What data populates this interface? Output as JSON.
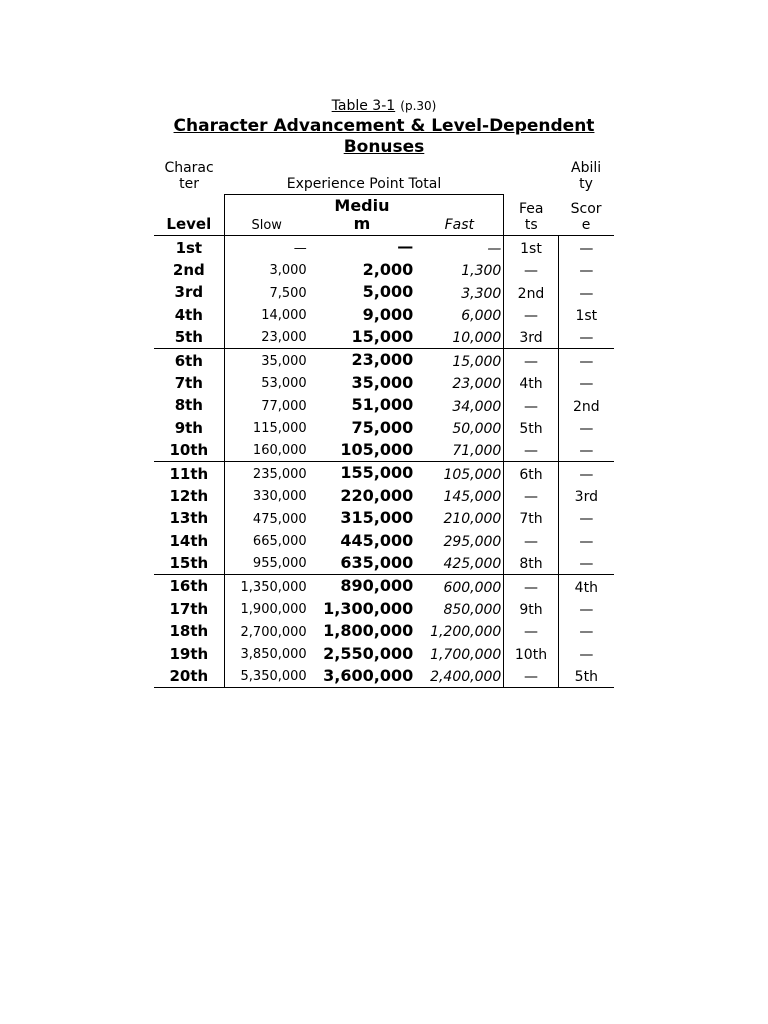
{
  "caption": {
    "ref": "Table 3-1",
    "page": "(p.30)",
    "title_l1": "Character Advancement & Level-Dependent",
    "title_l2": "Bonuses"
  },
  "headers": {
    "char_l1": "Charac",
    "char_l2": "ter",
    "ept": "Experience Point Total",
    "abil_l1": "Abili",
    "abil_l2": "ty",
    "level": "Level",
    "slow": "Slow",
    "medium_l1": "Mediu",
    "medium_l2": "m",
    "fast": "Fast",
    "feats_l1": "Fea",
    "feats_l2": "ts",
    "score_l1": "Scor",
    "score_l2": "e"
  },
  "rows": [
    {
      "level": "1st",
      "slow": "—",
      "medium": "—",
      "fast": "—",
      "feats": "1st",
      "score": "—",
      "sec": true
    },
    {
      "level": "2nd",
      "slow": "3,000",
      "medium": "2,000",
      "fast": "1,300",
      "feats": "—",
      "score": "—"
    },
    {
      "level": "3rd",
      "slow": "7,500",
      "medium": "5,000",
      "fast": "3,300",
      "feats": "2nd",
      "score": "—"
    },
    {
      "level": "4th",
      "slow": "14,000",
      "medium": "9,000",
      "fast": "6,000",
      "feats": "—",
      "score": "1st"
    },
    {
      "level": "5th",
      "slow": "23,000",
      "medium": "15,000",
      "fast": "10,000",
      "feats": "3rd",
      "score": "—"
    },
    {
      "level": "6th",
      "slow": "35,000",
      "medium": "23,000",
      "fast": "15,000",
      "feats": "—",
      "score": "—",
      "sec": true
    },
    {
      "level": "7th",
      "slow": "53,000",
      "medium": "35,000",
      "fast": "23,000",
      "feats": "4th",
      "score": "—"
    },
    {
      "level": "8th",
      "slow": "77,000",
      "medium": "51,000",
      "fast": "34,000",
      "feats": "—",
      "score": "2nd"
    },
    {
      "level": "9th",
      "slow": "115,000",
      "medium": "75,000",
      "fast": "50,000",
      "feats": "5th",
      "score": "—"
    },
    {
      "level": "10th",
      "slow": "160,000",
      "medium": "105,000",
      "fast": "71,000",
      "feats": "—",
      "score": "—"
    },
    {
      "level": "11th",
      "slow": "235,000",
      "medium": "155,000",
      "fast": "105,000",
      "feats": "6th",
      "score": "—",
      "sec": true
    },
    {
      "level": "12th",
      "slow": "330,000",
      "medium": "220,000",
      "fast": "145,000",
      "feats": "—",
      "score": "3rd"
    },
    {
      "level": "13th",
      "slow": "475,000",
      "medium": "315,000",
      "fast": "210,000",
      "feats": "7th",
      "score": "—"
    },
    {
      "level": "14th",
      "slow": "665,000",
      "medium": "445,000",
      "fast": "295,000",
      "feats": "—",
      "score": "—"
    },
    {
      "level": "15th",
      "slow": "955,000",
      "medium": "635,000",
      "fast": "425,000",
      "feats": "8th",
      "score": "—"
    },
    {
      "level": "16th",
      "slow": "1,350,000",
      "medium": "890,000",
      "fast": "600,000",
      "feats": "—",
      "score": "4th",
      "sec": true
    },
    {
      "level": "17th",
      "slow": "1,900,000",
      "medium": "1,300,000",
      "fast": "850,000",
      "feats": "9th",
      "score": "—"
    },
    {
      "level": "18th",
      "slow": "2,700,000",
      "medium": "1,800,000",
      "fast": "1,200,000",
      "feats": "—",
      "score": "—"
    },
    {
      "level": "19th",
      "slow": "3,850,000",
      "medium": "2,550,000",
      "fast": "1,700,000",
      "feats": "10th",
      "score": "—"
    },
    {
      "level": "20th",
      "slow": "5,350,000",
      "medium": "3,600,000",
      "fast": "2,400,000",
      "feats": "—",
      "score": "5th",
      "last": true
    }
  ]
}
